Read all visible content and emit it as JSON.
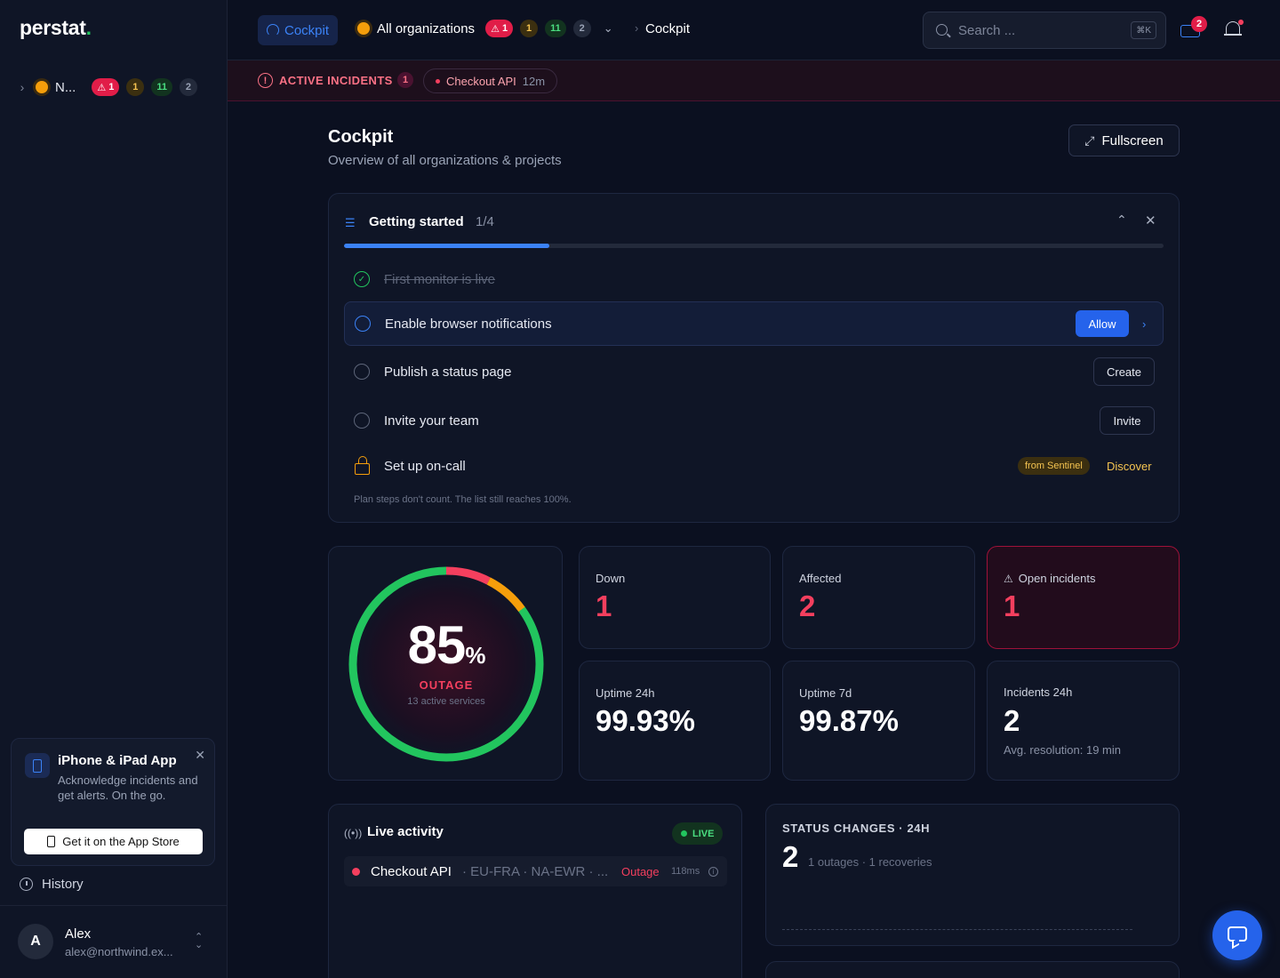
{
  "app": {
    "logo": "perstat",
    "logo_dot": "."
  },
  "sidebar": {
    "org": {
      "name": "N...",
      "badges": {
        "critical": "1",
        "warning": "1",
        "healthy": "11",
        "paused": "2"
      }
    },
    "promo": {
      "title": "iPhone & iPad App",
      "description": "Acknowledge incidents and get alerts. On the go.",
      "button": "Get it on the App Store"
    },
    "history": "History",
    "user": {
      "initial": "A",
      "name": "Alex",
      "email": "alex@northwind.ex..."
    }
  },
  "topbar": {
    "tab": "Cockpit",
    "orgs_label": "All organizations",
    "badges": {
      "critical": "1",
      "warning": "1",
      "healthy": "11",
      "paused": "2"
    },
    "crumb_current": "Cockpit",
    "search_placeholder": "Search ...",
    "search_shortcut": "⌘K",
    "inbox_count": "2"
  },
  "banner": {
    "label": "ACTIVE INCIDENTS",
    "count": "1",
    "service": "Checkout API",
    "duration": "12m"
  },
  "page": {
    "title": "Cockpit",
    "subtitle": "Overview of all organizations & projects",
    "fullscreen": "Fullscreen"
  },
  "getting_started": {
    "title": "Getting started",
    "progress": "1/4",
    "progress_fraction": 0.25,
    "steps": [
      {
        "label": "First monitor is live",
        "done": true
      },
      {
        "label": "Enable browser notifications",
        "action": "Allow"
      },
      {
        "label": "Publish a status page",
        "action": "Create"
      },
      {
        "label": "Invite your team",
        "action": "Invite"
      },
      {
        "label": "Set up on-call",
        "tag": "from Sentinel",
        "action": "Discover"
      }
    ],
    "note": "Plan steps don't count. The list still reaches 100%."
  },
  "gauge": {
    "value": "85",
    "unit": "%",
    "status": "OUTAGE",
    "sub": "13 active services",
    "healthy_fraction": 0.85
  },
  "stats": {
    "down": {
      "label": "Down",
      "value": "1"
    },
    "affected": {
      "label": "Affected",
      "value": "2"
    },
    "open_incidents": {
      "label": "Open incidents",
      "value": "1"
    },
    "uptime24": {
      "label": "Uptime 24h",
      "value": "99.93%"
    },
    "uptime7": {
      "label": "Uptime 7d",
      "value": "99.87%"
    },
    "incidents24": {
      "label": "Incidents 24h",
      "value": "2",
      "avg": "Avg. resolution: 19 min"
    }
  },
  "live": {
    "title": "Live activity",
    "badge": "LIVE",
    "rows": [
      {
        "name": "Checkout API",
        "location": "· EU-FRA · NA-EWR · ...",
        "status": "Outage",
        "latency": "118ms"
      }
    ]
  },
  "status_changes": {
    "label": "STATUS CHANGES · 24H",
    "count": "2",
    "detail": "1 outages · 1 recoveries"
  },
  "colors": {
    "accent": "#3b82f6",
    "danger": "#f43f5e",
    "warning": "#f59e0b",
    "success": "#22c55e",
    "background": "#0b1020"
  }
}
